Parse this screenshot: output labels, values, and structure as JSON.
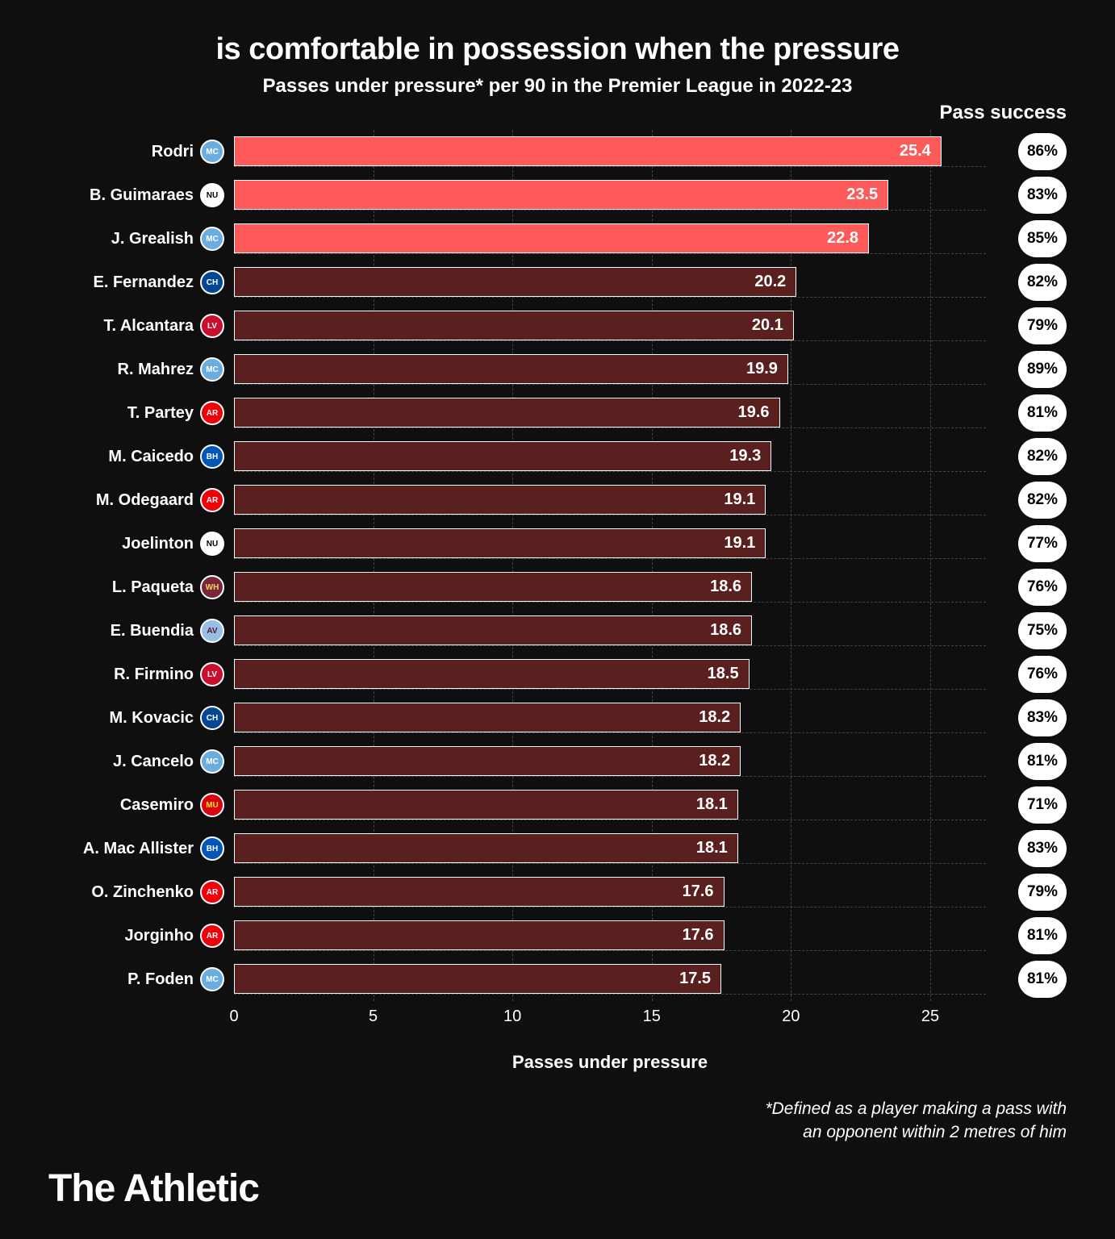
{
  "title": "is comfortable in possession when the pressure",
  "subtitle": "Passes under pressure* per 90 in the Premier League in 2022-23",
  "success_header": "Pass success",
  "x_label": "Passes under pressure",
  "footnote_line1": "*Defined as a player making a pass with",
  "footnote_line2": "an opponent within 2 metres of him",
  "brand": "The Athletic",
  "chart": {
    "type": "bar-horizontal",
    "x_min": 0,
    "x_max": 27,
    "x_ticks": [
      0,
      5,
      10,
      15,
      20,
      25
    ],
    "bar_border": "#ffffff",
    "highlight_color": "#ff5a5a",
    "muted_color": "#5a1f1f",
    "grid_color": "#444444",
    "background": "#0f0f0f",
    "pill_bg": "#ffffff",
    "pill_fg": "#000000",
    "label_fontsize": 20,
    "value_fontsize": 20
  },
  "teams": {
    "mancity": {
      "bg": "#6caddf",
      "fg": "#ffffff",
      "abbr": "MC"
    },
    "newcastle": {
      "bg": "#ffffff",
      "fg": "#000000",
      "abbr": "NU"
    },
    "chelsea": {
      "bg": "#034694",
      "fg": "#ffffff",
      "abbr": "CH"
    },
    "liverpool": {
      "bg": "#c8102e",
      "fg": "#ffffff",
      "abbr": "LV"
    },
    "arsenal": {
      "bg": "#ef0107",
      "fg": "#ffffff",
      "abbr": "AR"
    },
    "brighton": {
      "bg": "#0057b8",
      "fg": "#ffffff",
      "abbr": "BH"
    },
    "westham": {
      "bg": "#7a263a",
      "fg": "#f3d459",
      "abbr": "WH"
    },
    "astonvilla": {
      "bg": "#95bfe5",
      "fg": "#670e36",
      "abbr": "AV"
    },
    "manutd": {
      "bg": "#da020e",
      "fg": "#fbe122",
      "abbr": "MU"
    }
  },
  "rows": [
    {
      "name": "Rodri",
      "team": "mancity",
      "value": 25.4,
      "success": "86%",
      "highlight": true
    },
    {
      "name": "B. Guimaraes",
      "team": "newcastle",
      "value": 23.5,
      "success": "83%",
      "highlight": true
    },
    {
      "name": "J. Grealish",
      "team": "mancity",
      "value": 22.8,
      "success": "85%",
      "highlight": true
    },
    {
      "name": "E. Fernandez",
      "team": "chelsea",
      "value": 20.2,
      "success": "82%",
      "highlight": false
    },
    {
      "name": "T. Alcantara",
      "team": "liverpool",
      "value": 20.1,
      "success": "79%",
      "highlight": false
    },
    {
      "name": "R. Mahrez",
      "team": "mancity",
      "value": 19.9,
      "success": "89%",
      "highlight": false
    },
    {
      "name": "T. Partey",
      "team": "arsenal",
      "value": 19.6,
      "success": "81%",
      "highlight": false
    },
    {
      "name": "M. Caicedo",
      "team": "brighton",
      "value": 19.3,
      "success": "82%",
      "highlight": false
    },
    {
      "name": "M. Odegaard",
      "team": "arsenal",
      "value": 19.1,
      "success": "82%",
      "highlight": false
    },
    {
      "name": "Joelinton",
      "team": "newcastle",
      "value": 19.1,
      "success": "77%",
      "highlight": false
    },
    {
      "name": "L. Paqueta",
      "team": "westham",
      "value": 18.6,
      "success": "76%",
      "highlight": false
    },
    {
      "name": "E. Buendia",
      "team": "astonvilla",
      "value": 18.6,
      "success": "75%",
      "highlight": false
    },
    {
      "name": "R. Firmino",
      "team": "liverpool",
      "value": 18.5,
      "success": "76%",
      "highlight": false
    },
    {
      "name": "M. Kovacic",
      "team": "chelsea",
      "value": 18.2,
      "success": "83%",
      "highlight": false
    },
    {
      "name": "J. Cancelo",
      "team": "mancity",
      "value": 18.2,
      "success": "81%",
      "highlight": false
    },
    {
      "name": "Casemiro",
      "team": "manutd",
      "value": 18.1,
      "success": "71%",
      "highlight": false
    },
    {
      "name": "A. Mac Allister",
      "team": "brighton",
      "value": 18.1,
      "success": "83%",
      "highlight": false
    },
    {
      "name": "O. Zinchenko",
      "team": "arsenal",
      "value": 17.6,
      "success": "79%",
      "highlight": false
    },
    {
      "name": "Jorginho",
      "team": "arsenal",
      "value": 17.6,
      "success": "81%",
      "highlight": false
    },
    {
      "name": "P. Foden",
      "team": "mancity",
      "value": 17.5,
      "success": "81%",
      "highlight": false
    }
  ]
}
